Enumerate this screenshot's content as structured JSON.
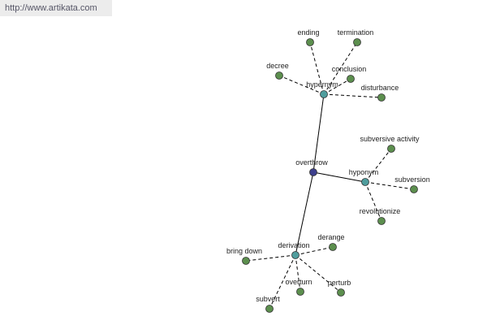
{
  "watermark": "http://www.artikata.com",
  "root": "overthrow",
  "groups": [
    {
      "label": "hypernym",
      "children": [
        "ending",
        "termination",
        "decree",
        "conclusion",
        "disturbance"
      ]
    },
    {
      "label": "hyponym",
      "children": [
        "subversive activity",
        "subversion",
        "revolutionize"
      ]
    },
    {
      "label": "derivation",
      "children": [
        "derange",
        "bring down",
        "overturn",
        "perturb",
        "subvert"
      ]
    }
  ]
}
